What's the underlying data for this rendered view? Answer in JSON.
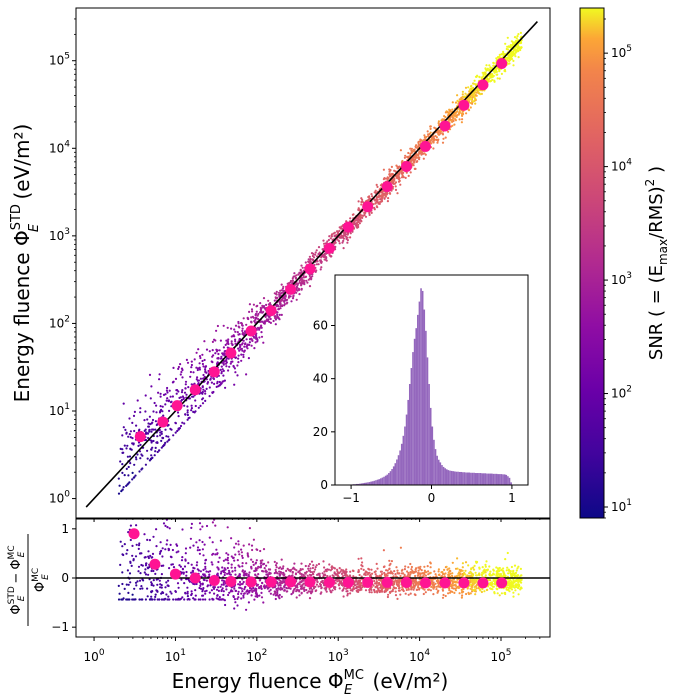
{
  "chart_data": [
    {
      "name": "main-scatter",
      "type": "scatter",
      "xscale": "log",
      "yscale": "log",
      "xlim": [
        0.6,
        400000
      ],
      "ylim": [
        0.6,
        400000
      ],
      "ylabel": {
        "main": "Energy fluence Φ",
        "sup": "STD",
        "sub": "E",
        "unit": "(eV/m²)"
      },
      "x_ticks": [
        1,
        10,
        100,
        1000,
        10000,
        100000
      ],
      "y_ticks": [
        {
          "value": 1,
          "base": "10",
          "exp": "0"
        },
        {
          "value": 10,
          "base": "10",
          "exp": "1"
        },
        {
          "value": 100,
          "base": "10",
          "exp": "2"
        },
        {
          "value": 1000,
          "base": "10",
          "exp": "3"
        },
        {
          "value": 10000,
          "base": "10",
          "exp": "4"
        },
        {
          "value": 100000,
          "base": "10",
          "exp": "5"
        }
      ],
      "identity_line": {
        "x": [
          0.8,
          280000
        ],
        "y": [
          0.8,
          280000
        ],
        "color": "#000000"
      },
      "binned_means": {
        "color": "#ff1493",
        "x": [
          3.7,
          7.0,
          10.5,
          17.5,
          30,
          48,
          85,
          150,
          260,
          450,
          780,
          1330,
          2300,
          4000,
          6900,
          11800,
          20500,
          35000,
          60000,
          102000
        ],
        "y": [
          5.1,
          7.5,
          11.5,
          17.5,
          28,
          46,
          82,
          140,
          245,
          420,
          720,
          1260,
          2150,
          3650,
          6200,
          10500,
          18000,
          31000,
          53000,
          93000
        ]
      },
      "density_note": "scatter points colored by SNR"
    },
    {
      "name": "inset-histogram",
      "type": "bar",
      "xlim": [
        -1.2,
        1.2
      ],
      "ylim": [
        0,
        79
      ],
      "x_ticks": [
        {
          "value": -1,
          "label": "−1"
        },
        {
          "value": 0,
          "label": "0"
        },
        {
          "value": 1,
          "label": "1"
        }
      ],
      "y_ticks": [
        {
          "value": 0,
          "label": "0"
        },
        {
          "value": 20,
          "label": "20"
        },
        {
          "value": 40,
          "label": "40"
        },
        {
          "value": 60,
          "label": "60"
        }
      ],
      "bar_color": "#9467bd",
      "bin_width": 0.02,
      "x": [
        -1.0,
        -0.98,
        -0.96,
        -0.94,
        -0.92,
        -0.9,
        -0.88,
        -0.86,
        -0.84,
        -0.82,
        -0.8,
        -0.78,
        -0.76,
        -0.74,
        -0.72,
        -0.7,
        -0.68,
        -0.66,
        -0.64,
        -0.62,
        -0.6,
        -0.58,
        -0.56,
        -0.54,
        -0.52,
        -0.5,
        -0.48,
        -0.46,
        -0.44,
        -0.42,
        -0.4,
        -0.38,
        -0.36,
        -0.34,
        -0.32,
        -0.3,
        -0.28,
        -0.26,
        -0.24,
        -0.22,
        -0.2,
        -0.18,
        -0.16,
        -0.14,
        -0.12,
        -0.1,
        -0.08,
        -0.06,
        -0.04,
        -0.02,
        0.0,
        0.02,
        0.04,
        0.06,
        0.08,
        0.1,
        0.12,
        0.14,
        0.16,
        0.18,
        0.2,
        0.22,
        0.24,
        0.26,
        0.28,
        0.3,
        0.32,
        0.34,
        0.36,
        0.38,
        0.4,
        0.42,
        0.44,
        0.46,
        0.48,
        0.5,
        0.52,
        0.54,
        0.56,
        0.58,
        0.6,
        0.62,
        0.64,
        0.66,
        0.68,
        0.7,
        0.72,
        0.74,
        0.76,
        0.78,
        0.8,
        0.82,
        0.84,
        0.86,
        0.88,
        0.9,
        0.92,
        0.94,
        0.96,
        0.98
      ],
      "values": [
        0.2,
        0.3,
        0.3,
        0.4,
        0.4,
        0.5,
        0.6,
        0.7,
        0.8,
        0.9,
        1.0,
        1.1,
        1.3,
        1.4,
        1.6,
        1.8,
        2.0,
        2.2,
        2.5,
        2.8,
        3.1,
        3.5,
        3.9,
        4.5,
        5.2,
        6.0,
        7.0,
        8.2,
        9.6,
        11.2,
        13.0,
        15.5,
        18.5,
        22.0,
        26.5,
        32.0,
        38.0,
        44.0,
        50.0,
        55.0,
        59.0,
        64.0,
        69.0,
        74.0,
        73.0,
        66.0,
        58.0,
        48.0,
        38.0,
        29.0,
        22.0,
        17.0,
        13.5,
        11.0,
        9.5,
        8.5,
        7.5,
        6.8,
        6.3,
        5.9,
        5.6,
        5.4,
        5.3,
        5.2,
        5.1,
        5.0,
        5.0,
        4.9,
        4.9,
        4.8,
        4.8,
        4.7,
        4.7,
        4.7,
        4.6,
        4.6,
        4.6,
        4.5,
        4.5,
        4.5,
        4.5,
        4.4,
        4.4,
        4.4,
        4.3,
        4.3,
        4.3,
        4.3,
        4.2,
        4.2,
        4.2,
        4.1,
        4.1,
        4.1,
        4.0,
        4.0,
        3.8,
        3.3,
        2.7,
        1.0
      ]
    },
    {
      "name": "residual-scatter",
      "type": "scatter",
      "xscale": "log",
      "xlim": [
        0.6,
        400000
      ],
      "ylim": [
        -1.2,
        1.2
      ],
      "xlabel": {
        "main": "Energy fluence Φ",
        "sup": "MC",
        "sub": "E",
        "unit": "(eV/m²)"
      },
      "x_ticks": [
        {
          "value": 1,
          "base": "10",
          "exp": "0"
        },
        {
          "value": 10,
          "base": "10",
          "exp": "1"
        },
        {
          "value": 100,
          "base": "10",
          "exp": "2"
        },
        {
          "value": 1000,
          "base": "10",
          "exp": "3"
        },
        {
          "value": 10000,
          "base": "10",
          "exp": "4"
        },
        {
          "value": 100000,
          "base": "10",
          "exp": "5"
        }
      ],
      "y_ticks": [
        {
          "value": 1,
          "label": "1"
        },
        {
          "value": 0,
          "label": "0"
        },
        {
          "value": -1,
          "label": "−1"
        }
      ],
      "ylabel": {
        "num_main": "Φ",
        "num_sup1": "STD",
        "num_sub1": "E",
        "num_minus": "−",
        "num_sup2": "MC",
        "num_sub2": "E",
        "den_sup": "MC",
        "den_sub": "E"
      },
      "zero_line": 0,
      "binned_means": {
        "color": "#ff1493",
        "x": [
          3.1,
          5.6,
          10,
          17.5,
          30,
          48,
          85,
          150,
          260,
          450,
          780,
          1330,
          2300,
          4000,
          6900,
          11800,
          20500,
          35000,
          60000,
          102000
        ],
        "y": [
          0.9,
          0.28,
          0.08,
          0.0,
          -0.05,
          -0.07,
          -0.08,
          -0.08,
          -0.08,
          -0.08,
          -0.09,
          -0.09,
          -0.09,
          -0.09,
          -0.09,
          -0.1,
          -0.1,
          -0.1,
          -0.1,
          -0.1
        ]
      }
    }
  ],
  "colorbar": {
    "label": {
      "prefix": "SNR ( = (E",
      "sub": "max",
      "mid": "/RMS)",
      "sup": "2",
      "suffix": " )"
    },
    "scale": "log",
    "range": [
      8,
      250000
    ],
    "colormap": "plasma",
    "ticks": [
      {
        "value": 10,
        "base": "10",
        "exp": "1"
      },
      {
        "value": 100,
        "base": "10",
        "exp": "2"
      },
      {
        "value": 1000,
        "base": "10",
        "exp": "3"
      },
      {
        "value": 10000,
        "base": "10",
        "exp": "4"
      },
      {
        "value": 100000,
        "base": "10",
        "exp": "5"
      }
    ]
  }
}
